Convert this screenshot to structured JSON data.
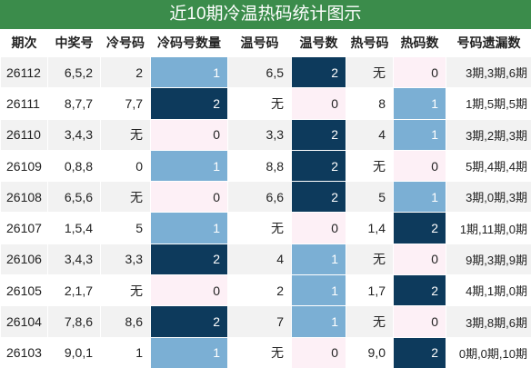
{
  "title": "近10期冷温热码统计图示",
  "table": {
    "header": [
      "期次",
      "中奖号",
      "冷号码",
      "冷码号数量",
      "温号码",
      "温号数",
      "热号码",
      "热码数",
      "号码遗漏数"
    ],
    "rows": [
      [
        "26112",
        "6,5,2",
        "2",
        1,
        "6,5",
        2,
        "无",
        0,
        "3期,3期,6期"
      ],
      [
        "26111",
        "8,7,7",
        "7,7",
        2,
        "无",
        0,
        "8",
        1,
        "1期,5期,5期"
      ],
      [
        "26110",
        "3,4,3",
        "无",
        0,
        "3,3",
        2,
        "4",
        1,
        "3期,2期,3期"
      ],
      [
        "26109",
        "0,8,8",
        "0",
        1,
        "8,8",
        2,
        "无",
        0,
        "5期,4期,4期"
      ],
      [
        "26108",
        "6,5,6",
        "无",
        0,
        "6,6",
        2,
        "5",
        1,
        "3期,0期,3期"
      ],
      [
        "26107",
        "1,5,4",
        "5",
        1,
        "无",
        0,
        "1,4",
        2,
        "1期,11期,0期"
      ],
      [
        "26106",
        "3,4,3",
        "3,3",
        2,
        "4",
        1,
        "无",
        0,
        "9期,3期,9期"
      ],
      [
        "26105",
        "2,1,7",
        "无",
        0,
        "2",
        1,
        "1,7",
        2,
        "4期,1期,0期"
      ],
      [
        "26104",
        "7,8,6",
        "8,6",
        2,
        "7",
        1,
        "无",
        0,
        "3期,8期,6期"
      ],
      [
        "26103",
        "9,0,1",
        "1",
        1,
        "无",
        0,
        "9,0",
        2,
        "0期,0期,10期"
      ]
    ]
  }
}
